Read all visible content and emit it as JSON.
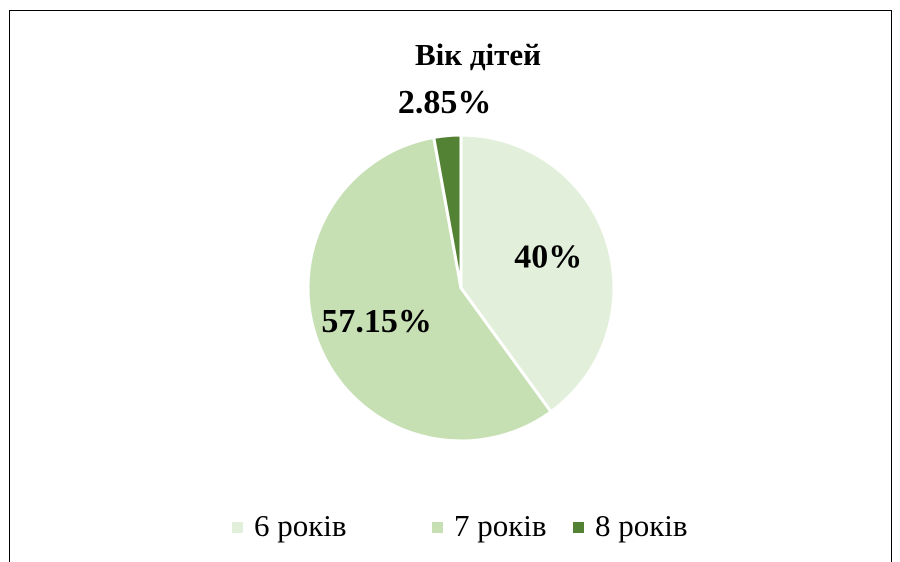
{
  "chart_data": {
    "type": "pie",
    "title": "Вік дітей",
    "categories": [
      "6 років",
      "7 років",
      "8 років"
    ],
    "values": [
      40,
      57.15,
      2.85
    ],
    "value_labels": [
      "40%",
      "57.15%",
      "2.85%"
    ],
    "colors": [
      "#e2efda",
      "#c6e0b4",
      "#548235"
    ],
    "legend": "bottom"
  }
}
